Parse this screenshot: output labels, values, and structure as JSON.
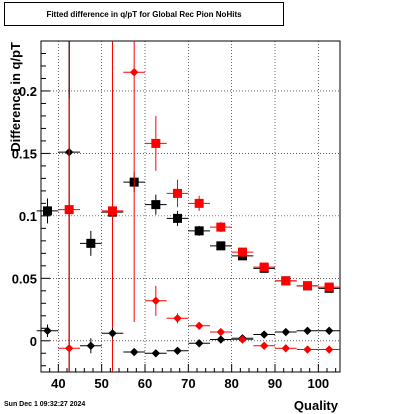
{
  "chart_data": {
    "type": "scatter",
    "title": "Fitted difference in q/pT for Global Rec Pion NoHits",
    "xlabel": "Quality",
    "ylabel": "Difference in q/pT",
    "xlim": [
      36,
      105
    ],
    "ylim": [
      -0.025,
      0.24
    ],
    "x_ticks": [
      40,
      50,
      60,
      70,
      80,
      90,
      100
    ],
    "y_ticks": [
      0,
      0.05,
      0.1,
      0.15,
      0.2
    ],
    "y_tick_labels": [
      "0",
      "0.05",
      "0.1",
      "0.15",
      "0.2"
    ],
    "grid": true,
    "series": [
      {
        "marker": "square",
        "color": "#000000",
        "points": [
          {
            "x": 37.5,
            "y": 0.104,
            "xerr": 2.5,
            "yerr": 0.01
          },
          {
            "x": 47.5,
            "y": 0.078,
            "xerr": 2.5,
            "yerr": 0.01
          },
          {
            "x": 52.5,
            "y": 0.103,
            "xerr": 2.5,
            "yerr": 0.005
          },
          {
            "x": 57.5,
            "y": 0.127,
            "xerr": 2.5,
            "yerr": 0.008
          },
          {
            "x": 62.5,
            "y": 0.109,
            "xerr": 2.5,
            "yerr": 0.008
          },
          {
            "x": 67.5,
            "y": 0.098,
            "xerr": 2.5,
            "yerr": 0.006
          },
          {
            "x": 72.5,
            "y": 0.088,
            "xerr": 2.5,
            "yerr": 0.004
          },
          {
            "x": 77.5,
            "y": 0.076,
            "xerr": 2.5,
            "yerr": 0.003
          },
          {
            "x": 82.5,
            "y": 0.068,
            "xerr": 2.5,
            "yerr": 0.002
          },
          {
            "x": 87.5,
            "y": 0.058,
            "xerr": 2.5,
            "yerr": 0.002
          },
          {
            "x": 92.5,
            "y": 0.048,
            "xerr": 2.5,
            "yerr": 0.002
          },
          {
            "x": 97.5,
            "y": 0.044,
            "xerr": 2.5,
            "yerr": 0.002
          },
          {
            "x": 102.5,
            "y": 0.042,
            "xerr": 2.5,
            "yerr": 0.002
          }
        ]
      },
      {
        "marker": "square",
        "color": "#ff0000",
        "points": [
          {
            "x": 42.5,
            "y": 0.105,
            "xerr": 2.5,
            "yerr": 0.2
          },
          {
            "x": 52.5,
            "y": 0.104,
            "xerr": 2.5,
            "yerr": 0.2
          },
          {
            "x": 62.5,
            "y": 0.158,
            "xerr": 2.5,
            "yerr": 0.022
          },
          {
            "x": 67.5,
            "y": 0.118,
            "xerr": 2.5,
            "yerr": 0.011
          },
          {
            "x": 72.5,
            "y": 0.11,
            "xerr": 2.5,
            "yerr": 0.006
          },
          {
            "x": 77.5,
            "y": 0.091,
            "xerr": 2.5,
            "yerr": 0.004
          },
          {
            "x": 82.5,
            "y": 0.071,
            "xerr": 2.5,
            "yerr": 0.003
          },
          {
            "x": 87.5,
            "y": 0.059,
            "xerr": 2.5,
            "yerr": 0.002
          },
          {
            "x": 92.5,
            "y": 0.048,
            "xerr": 2.5,
            "yerr": 0.002
          },
          {
            "x": 97.5,
            "y": 0.044,
            "xerr": 2.5,
            "yerr": 0.002
          },
          {
            "x": 102.5,
            "y": 0.043,
            "xerr": 2.5,
            "yerr": 0.002
          }
        ]
      },
      {
        "marker": "diamond",
        "color": "#000000",
        "points": [
          {
            "x": 37.5,
            "y": 0.008,
            "xerr": 2.5,
            "yerr": 0.005
          },
          {
            "x": 42.5,
            "y": 0.151,
            "xerr": 2.5,
            "yerr": 0.2
          },
          {
            "x": 47.5,
            "y": -0.004,
            "xerr": 2.5,
            "yerr": 0.006
          },
          {
            "x": 52.5,
            "y": 0.006,
            "xerr": 2.5,
            "yerr": 0.004
          },
          {
            "x": 57.5,
            "y": -0.009,
            "xerr": 2.5,
            "yerr": 0.003
          },
          {
            "x": 62.5,
            "y": -0.01,
            "xerr": 2.5,
            "yerr": 0.002
          },
          {
            "x": 67.5,
            "y": -0.008,
            "xerr": 2.5,
            "yerr": 0.002
          },
          {
            "x": 72.5,
            "y": -0.002,
            "xerr": 2.5,
            "yerr": 0.002
          },
          {
            "x": 77.5,
            "y": 0.001,
            "xerr": 2.5,
            "yerr": 0.002
          },
          {
            "x": 82.5,
            "y": 0.002,
            "xerr": 2.5,
            "yerr": 0.001
          },
          {
            "x": 87.5,
            "y": 0.005,
            "xerr": 2.5,
            "yerr": 0.001
          },
          {
            "x": 92.5,
            "y": 0.007,
            "xerr": 2.5,
            "yerr": 0.001
          },
          {
            "x": 97.5,
            "y": 0.008,
            "xerr": 2.5,
            "yerr": 0.001
          },
          {
            "x": 102.5,
            "y": 0.008,
            "xerr": 2.5,
            "yerr": 0.001
          }
        ]
      },
      {
        "marker": "diamond",
        "color": "#ff0000",
        "points": [
          {
            "x": 42.5,
            "y": -0.006,
            "xerr": 2.5,
            "yerr": 0.2
          },
          {
            "x": 57.5,
            "y": 0.215,
            "xerr": 2.5,
            "yerr": 0.2
          },
          {
            "x": 62.5,
            "y": 0.032,
            "xerr": 2.5,
            "yerr": 0.012
          },
          {
            "x": 67.5,
            "y": 0.018,
            "xerr": 2.5,
            "yerr": 0.004
          },
          {
            "x": 72.5,
            "y": 0.012,
            "xerr": 2.5,
            "yerr": 0.003
          },
          {
            "x": 77.5,
            "y": 0.007,
            "xerr": 2.5,
            "yerr": 0.002
          },
          {
            "x": 82.5,
            "y": 0.001,
            "xerr": 2.5,
            "yerr": 0.002
          },
          {
            "x": 87.5,
            "y": -0.004,
            "xerr": 2.5,
            "yerr": 0.001
          },
          {
            "x": 92.5,
            "y": -0.006,
            "xerr": 2.5,
            "yerr": 0.001
          },
          {
            "x": 97.5,
            "y": -0.007,
            "xerr": 2.5,
            "yerr": 0.001
          },
          {
            "x": 102.5,
            "y": -0.007,
            "xerr": 2.5,
            "yerr": 0.001
          }
        ]
      }
    ]
  },
  "footer": {
    "timestamp": "Sun Dec  1 09:32:27 2024"
  }
}
